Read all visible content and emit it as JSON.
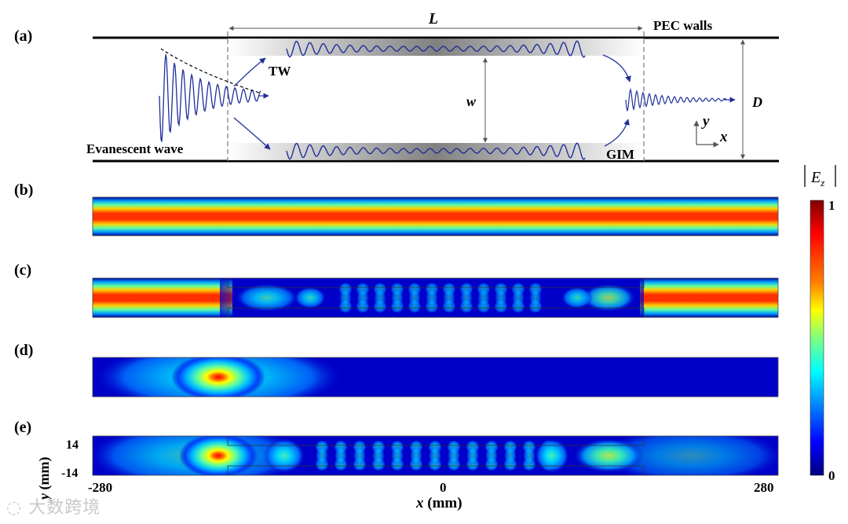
{
  "panel_labels": {
    "a": "(a)",
    "b": "(b)",
    "c": "(c)",
    "d": "(d)",
    "e": "(e)"
  },
  "schematic": {
    "length_label": "L",
    "walls_label": "PEC walls",
    "tw_label": "TW",
    "width_label": "w",
    "height_label": "D",
    "evanescent_label": "Evanescent wave",
    "gim_label": "GIM",
    "axis_y": "y",
    "axis_x": "x"
  },
  "colorbar": {
    "title_var": "E",
    "title_sub": "z",
    "max_label": "1",
    "min_label": "0",
    "colors": [
      "#7f0000",
      "#ff0000",
      "#ff8000",
      "#ffff00",
      "#80ff80",
      "#00ffff",
      "#0080ff",
      "#0000ff",
      "#00007f"
    ]
  },
  "axes": {
    "x_label": "x",
    "x_unit": " (mm)",
    "y_label": "y",
    "y_unit": " (mm)",
    "x_ticks": [
      "-280",
      "0",
      "280"
    ],
    "y_ticks": [
      "14",
      "-14"
    ]
  },
  "watermark": "大数跨境"
}
